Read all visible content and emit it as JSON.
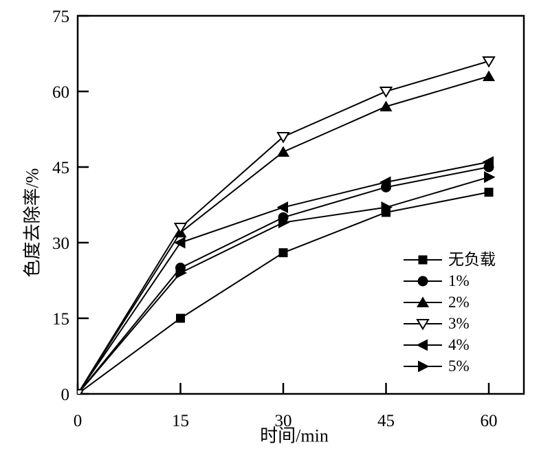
{
  "chart_data": {
    "type": "line",
    "title": "",
    "xlabel": "时间/min",
    "ylabel": "色度去除率/%",
    "x": [
      0,
      15,
      30,
      45,
      60
    ],
    "xticks": [
      "0",
      "15",
      "30",
      "45",
      "60"
    ],
    "yticks": [
      "0",
      "15",
      "30",
      "45",
      "60",
      "75"
    ],
    "xlim": [
      0,
      65
    ],
    "ylim": [
      0,
      75
    ],
    "grid": false,
    "legend_position": "inside lower right",
    "colors": {
      "line": "#000000",
      "background": "#ffffff",
      "open_marker_fill": "#ffffff"
    },
    "series": [
      {
        "name": "无负载",
        "marker": "square-filled",
        "values": [
          0,
          15,
          28,
          36,
          40
        ]
      },
      {
        "name": "1%",
        "marker": "circle-filled",
        "values": [
          0,
          25,
          35,
          41,
          45
        ]
      },
      {
        "name": "2%",
        "marker": "triangle-up-filled",
        "values": [
          0,
          32,
          48,
          57,
          63
        ]
      },
      {
        "name": "3%",
        "marker": "triangle-down-open",
        "values": [
          0,
          33,
          51,
          60,
          66
        ]
      },
      {
        "name": "4%",
        "marker": "triangle-left-filled",
        "values": [
          0,
          30,
          37,
          42,
          46
        ]
      },
      {
        "name": "5%",
        "marker": "triangle-right-filled",
        "values": [
          0,
          24,
          34,
          37,
          43
        ]
      }
    ]
  }
}
